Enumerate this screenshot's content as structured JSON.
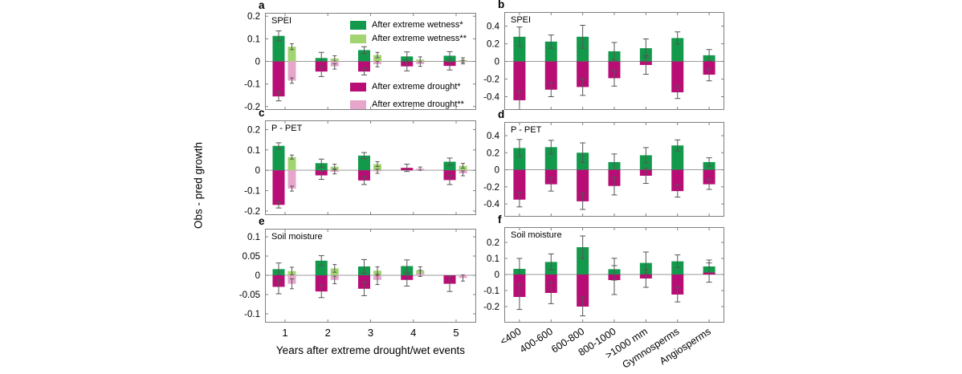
{
  "ylabel": "Obs - pred growth",
  "xlabel_left": "Years after extreme drought/wet events",
  "colors": {
    "wetness_sig": "#13994b",
    "wetness_nonsig": "#a3d472",
    "drought_sig": "#b80d75",
    "drought_nonsig": "#e6a6cc",
    "zero_line": "#999999",
    "axis_box": "#7f7f7f",
    "error_bar": "#555555"
  },
  "legend": {
    "entries": [
      {
        "label": "After extreme wetness*",
        "color": "#13994b"
      },
      {
        "label": "After extreme wetness**",
        "color": "#a3d472"
      },
      {
        "label": "After extreme drought*",
        "color": "#b80d75"
      },
      {
        "label": "After extreme drought**",
        "color": "#e6a6cc"
      }
    ]
  },
  "chart_data": [
    {
      "type": "bar",
      "panel_label": "a",
      "title": "SPEI",
      "side": "left",
      "xticklabels": "none",
      "ylim": [
        -0.215,
        0.215
      ],
      "yticks": [
        0.2,
        0.1,
        0,
        -0.1,
        -0.2
      ],
      "categories": [
        "1",
        "2",
        "3",
        "4",
        "5"
      ],
      "series": [
        {
          "name": "After extreme wetness*",
          "color": "#13994b",
          "values": [
            0.113,
            0.015,
            0.05,
            0.022,
            0.025
          ],
          "errors": [
            0.022,
            0.025,
            0.015,
            0.02,
            0.018
          ]
        },
        {
          "name": "After extreme wetness**",
          "color": "#a3d472",
          "values": [
            0.065,
            0.013,
            0.028,
            0.008,
            0.006
          ],
          "errors": [
            0.013,
            0.012,
            0.012,
            0.012,
            0.01
          ]
        },
        {
          "name": "After extreme drought*",
          "color": "#b80d75",
          "values": [
            -0.155,
            -0.045,
            -0.045,
            -0.022,
            -0.02
          ],
          "errors": [
            0.02,
            0.022,
            0.015,
            0.02,
            0.018
          ]
        },
        {
          "name": "After extreme drought**",
          "color": "#e6a6cc",
          "values": [
            -0.085,
            -0.022,
            -0.012,
            -0.012,
            -0.003
          ],
          "errors": [
            0.012,
            0.012,
            0.012,
            0.01,
            0.008
          ]
        }
      ]
    },
    {
      "type": "bar",
      "panel_label": "b",
      "title": "SPEI",
      "side": "right",
      "xticklabels": "none",
      "ylim": [
        -0.55,
        0.56
      ],
      "yticks": [
        0.4,
        0.2,
        0,
        -0.2,
        -0.4
      ],
      "categories": [
        "<400",
        "400-600",
        "600-800",
        "800-1000",
        ">1000 mm",
        "Gymnosperms",
        "Angiosperms"
      ],
      "series": [
        {
          "name": "After extreme wetness*",
          "color": "#13994b",
          "values": [
            0.28,
            0.225,
            0.28,
            0.115,
            0.15,
            0.265,
            0.07
          ],
          "errors": [
            0.11,
            0.075,
            0.13,
            0.1,
            0.105,
            0.07,
            0.065
          ]
        },
        {
          "name": "After extreme drought*",
          "color": "#b80d75",
          "values": [
            -0.44,
            -0.32,
            -0.29,
            -0.19,
            -0.04,
            -0.35,
            -0.15
          ],
          "errors": [
            0.105,
            0.08,
            0.095,
            0.09,
            0.105,
            0.07,
            0.07
          ]
        }
      ]
    },
    {
      "type": "bar",
      "panel_label": "c",
      "title": "P - PET",
      "side": "left",
      "xticklabels": "none",
      "ylim": [
        -0.22,
        0.245
      ],
      "yticks": [
        0.2,
        0.1,
        0,
        -0.1,
        -0.2
      ],
      "categories": [
        "1",
        "2",
        "3",
        "4",
        "5"
      ],
      "series": [
        {
          "name": "After extreme wetness*",
          "color": "#13994b",
          "values": [
            0.12,
            0.035,
            0.072,
            0,
            0.042
          ],
          "errors": [
            0.015,
            0.02,
            0.015,
            0,
            0.018
          ]
        },
        {
          "name": "After extreme wetness**",
          "color": "#a3d472",
          "values": [
            0.065,
            0.018,
            0.03,
            0,
            0.022
          ],
          "errors": [
            0.01,
            0.012,
            0.012,
            0,
            0.012
          ]
        },
        {
          "name": "After extreme drought*",
          "color": "#b80d75",
          "values": [
            -0.17,
            -0.025,
            -0.05,
            0.012,
            -0.048
          ],
          "errors": [
            0.015,
            0.02,
            0.02,
            0.018,
            0.022
          ]
        },
        {
          "name": "After extreme drought**",
          "color": "#e6a6cc",
          "values": [
            -0.09,
            -0.008,
            -0.005,
            0.008,
            -0.015
          ],
          "errors": [
            0.012,
            0.01,
            0.01,
            0.008,
            0.012
          ]
        }
      ]
    },
    {
      "type": "bar",
      "panel_label": "d",
      "title": "P - PET",
      "side": "right",
      "xticklabels": "none",
      "ylim": [
        -0.55,
        0.56
      ],
      "yticks": [
        0.4,
        0.2,
        0,
        -0.2,
        -0.4
      ],
      "categories": [
        "<400",
        "400-600",
        "600-800",
        "800-1000",
        ">1000 mm",
        "Gymnosperms",
        "Angiosperms"
      ],
      "series": [
        {
          "name": "After extreme wetness*",
          "color": "#13994b",
          "values": [
            0.255,
            0.265,
            0.2,
            0.09,
            0.17,
            0.285,
            0.09
          ],
          "errors": [
            0.1,
            0.08,
            0.115,
            0.095,
            0.09,
            0.065,
            0.05
          ]
        },
        {
          "name": "After extreme drought*",
          "color": "#b80d75",
          "values": [
            -0.35,
            -0.17,
            -0.37,
            -0.19,
            -0.07,
            -0.25,
            -0.17
          ],
          "errors": [
            0.085,
            0.08,
            0.095,
            0.105,
            0.09,
            0.07,
            0.06
          ]
        }
      ]
    },
    {
      "type": "bar",
      "panel_label": "e",
      "title": "Soil moisture",
      "side": "left",
      "xticklabels": "horizontal",
      "ylim": [
        -0.123,
        0.121
      ],
      "yticks": [
        0.1,
        0.05,
        0,
        -0.05,
        -0.1
      ],
      "categories": [
        "1",
        "2",
        "3",
        "4",
        "5"
      ],
      "series": [
        {
          "name": "After extreme wetness*",
          "color": "#13994b",
          "values": [
            0.016,
            0.038,
            0.023,
            0.024,
            0
          ],
          "errors": [
            0.016,
            0.013,
            0.018,
            0.016,
            0
          ]
        },
        {
          "name": "After extreme wetness**",
          "color": "#a3d472",
          "values": [
            0.011,
            0.018,
            0.012,
            0.013,
            0
          ],
          "errors": [
            0.01,
            0.01,
            0.01,
            0.009,
            0
          ]
        },
        {
          "name": "After extreme drought*",
          "color": "#b80d75",
          "values": [
            -0.03,
            -0.042,
            -0.035,
            -0.012,
            -0.022
          ],
          "errors": [
            0.018,
            0.016,
            0.018,
            0.016,
            0.02
          ]
        },
        {
          "name": "After extreme drought**",
          "color": "#e6a6cc",
          "values": [
            -0.022,
            -0.012,
            -0.012,
            0.005,
            -0.007
          ],
          "errors": [
            0.013,
            0.01,
            0.012,
            0.008,
            0.008
          ]
        }
      ]
    },
    {
      "type": "bar",
      "panel_label": "f",
      "title": "Soil moisture",
      "side": "right",
      "xticklabels": "rotated",
      "ylim": [
        -0.3,
        0.295
      ],
      "yticks": [
        0.2,
        0.1,
        0,
        -0.1,
        -0.2
      ],
      "categories": [
        "<400",
        "400-600",
        "600-800",
        "800-1000",
        ">1000 mm",
        "Gymnosperms",
        "Angiosperms"
      ],
      "series": [
        {
          "name": "After extreme wetness*",
          "color": "#13994b",
          "values": [
            0.035,
            0.078,
            0.17,
            0.033,
            0.072,
            0.082,
            0.05
          ],
          "errors": [
            0.065,
            0.05,
            0.07,
            0.068,
            0.068,
            0.04,
            0.04
          ]
        },
        {
          "name": "After extreme drought*",
          "color": "#b80d75",
          "values": [
            -0.14,
            -0.115,
            -0.2,
            -0.035,
            -0.025,
            -0.125,
            0.012
          ],
          "errors": [
            0.078,
            0.067,
            0.058,
            0.09,
            0.055,
            0.046,
            0.06
          ]
        }
      ]
    }
  ]
}
